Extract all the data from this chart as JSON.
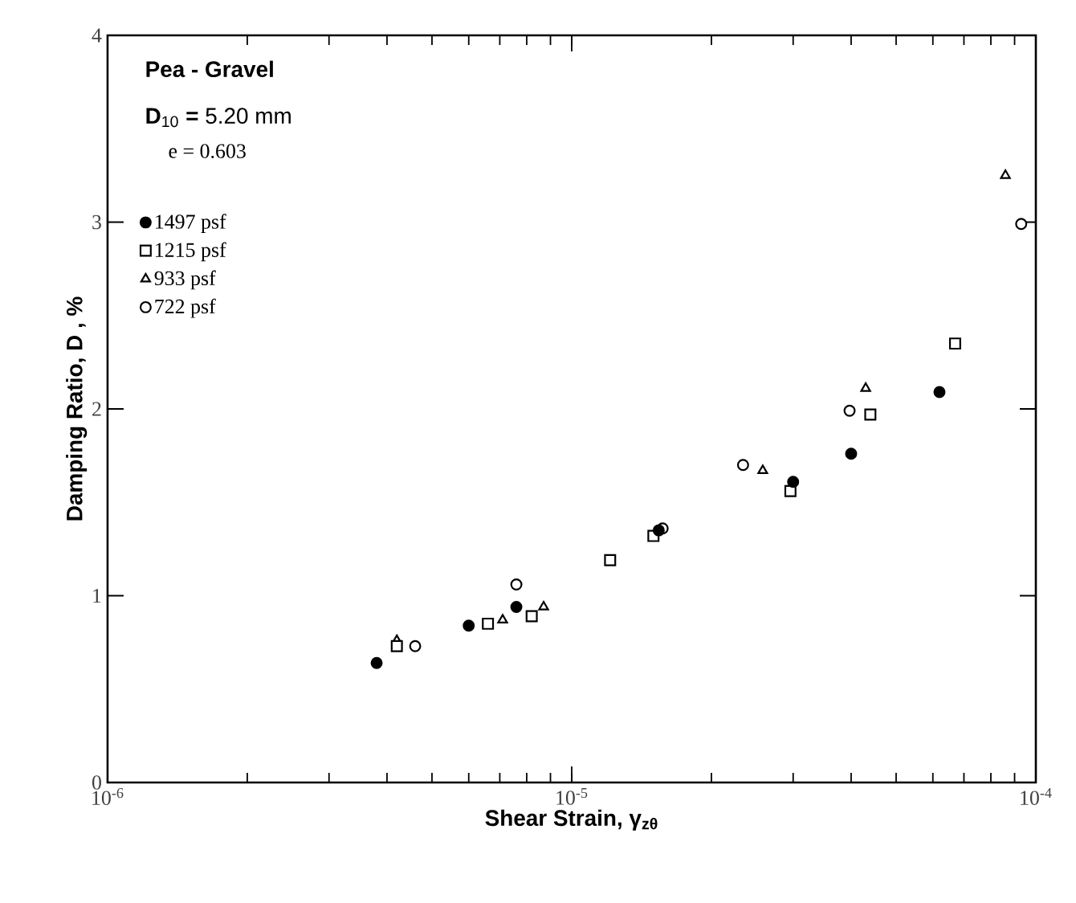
{
  "chart_data": {
    "type": "scatter",
    "xlabel": "Shear Strain, γ$_{zθ}$",
    "ylabel": "Damping Ratio, D , %",
    "annotations": [
      "Pea - Gravel",
      "**D**$_{10}$ **=** 5.20 mm",
      "e = 0.603"
    ],
    "log": "x",
    "xlim": [
      1e-06,
      0.0001
    ],
    "xticks": [
      {
        "value": 1e-06,
        "label": "10$^{-6}$"
      },
      {
        "value": 1e-05,
        "label": "10$^{-5}$"
      },
      {
        "value": 0.0001,
        "label": "10$^{-4}$"
      }
    ],
    "ylim": [
      0,
      4
    ],
    "yticks": [
      0,
      1,
      2,
      3,
      4
    ],
    "grid": false,
    "legend": "top left",
    "series": [
      {
        "name": "1497 psf",
        "color": "#000000",
        "marker": "circle",
        "x": [
          3.8e-06,
          6e-06,
          7.6e-06,
          1.54e-05,
          3e-05,
          4e-05,
          6.2e-05
        ],
        "values": [
          0.64,
          0.84,
          0.94,
          1.35,
          1.61,
          1.76,
          2.09
        ]
      },
      {
        "name": "1215 psf",
        "color": "#000000",
        "marker": "square",
        "x": [
          4.2e-06,
          6.6e-06,
          8.2e-06,
          1.21e-05,
          1.5e-05,
          2.96e-05,
          4.4e-05,
          6.7e-05
        ],
        "values": [
          0.73,
          0.85,
          0.89,
          1.19,
          1.32,
          1.56,
          1.97,
          2.35
        ]
      },
      {
        "name": "933 psf",
        "color": "#000000",
        "marker": "triangle",
        "x": [
          4.2e-06,
          7.1e-06,
          8.7e-06,
          2.58e-05,
          4.3e-05,
          8.6e-05
        ],
        "values": [
          0.76,
          0.87,
          0.94,
          1.67,
          2.11,
          3.25
        ]
      },
      {
        "name": "722 psf",
        "color": "#000000",
        "marker": "circle",
        "x": [
          4.6e-06,
          7.6e-06,
          1.57e-05,
          2.34e-05,
          3.97e-05,
          9.3e-05
        ],
        "values": [
          0.73,
          1.06,
          1.36,
          1.7,
          1.99,
          2.99
        ]
      }
    ]
  }
}
